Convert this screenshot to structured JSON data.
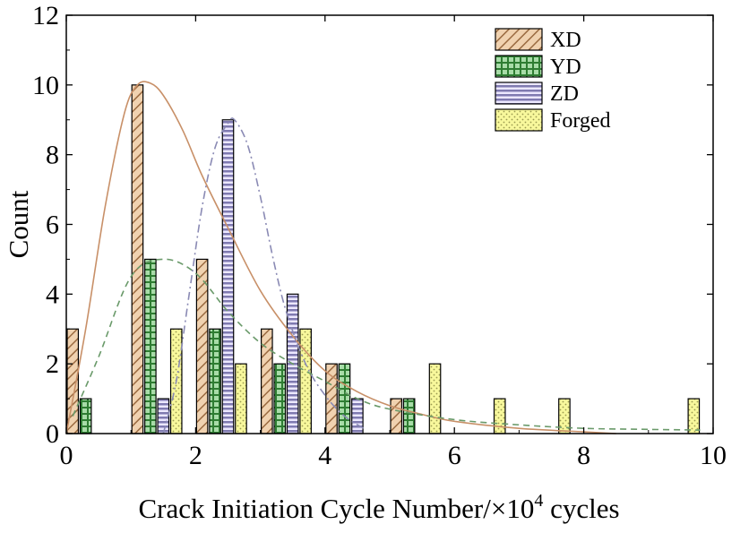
{
  "chart_data": {
    "type": "bar",
    "title": "",
    "xlabel": "Crack Initiation Cycle Number/×10",
    "xlabel_superscript": "4",
    "xlabel_suffix": " cycles",
    "ylabel": "Count",
    "xlim": [
      0,
      10
    ],
    "ylim": [
      0,
      12
    ],
    "x_ticks": [
      "0",
      "2",
      "4",
      "6",
      "8",
      "10"
    ],
    "y_ticks": [
      "0",
      "2",
      "4",
      "6",
      "8",
      "10",
      "12"
    ],
    "grid": false,
    "legend_position": "top-right",
    "bin_width": 1,
    "bin_starts": [
      0,
      1,
      2,
      3,
      4,
      5,
      6,
      7,
      8,
      9
    ],
    "series": [
      {
        "name": "XD",
        "color": "#e3bc95",
        "pattern": "diagonal-hatch",
        "values": [
          3,
          10,
          5,
          3,
          2,
          1,
          0,
          0,
          0,
          0
        ],
        "fit_curve": {
          "style": "solid",
          "color": "#c89068",
          "x": [
            0.0,
            0.3,
            0.6,
            0.9,
            1.1,
            1.3,
            1.5,
            1.8,
            2.1,
            2.5,
            3.0,
            3.5,
            4.0,
            4.5,
            5.0,
            5.5,
            6.0,
            7.0,
            8.0,
            8.5
          ],
          "y": [
            0.0,
            3.0,
            6.5,
            9.2,
            10.0,
            10.05,
            9.7,
            8.7,
            7.4,
            5.9,
            4.1,
            2.8,
            1.8,
            1.2,
            0.8,
            0.55,
            0.35,
            0.15,
            0.05,
            0.0
          ]
        }
      },
      {
        "name": "YD",
        "color": "#66bb66",
        "pattern": "crosshatch",
        "values": [
          1,
          5,
          3,
          2,
          2,
          1,
          0,
          0,
          0,
          0
        ],
        "fit_curve": {
          "style": "dashed",
          "color": "#6a9a6a",
          "x": [
            0.1,
            0.5,
            1.0,
            1.5,
            2.0,
            2.5,
            3.0,
            3.5,
            4.0,
            4.5,
            5.0,
            6.0,
            7.0,
            8.0,
            9.0,
            9.8
          ],
          "y": [
            0.5,
            2.2,
            4.5,
            5.0,
            4.6,
            3.5,
            2.6,
            2.0,
            1.5,
            1.0,
            0.7,
            0.4,
            0.25,
            0.15,
            0.12,
            0.1
          ]
        }
      },
      {
        "name": "ZD",
        "color": "#8c88b6",
        "pattern": "horizontal-lines",
        "values": [
          0,
          1,
          9,
          4,
          1,
          0,
          0,
          0,
          0,
          0
        ],
        "fit_curve": {
          "style": "dash-dot",
          "color": "#8a8ab4",
          "x": [
            1.5,
            1.7,
            1.9,
            2.1,
            2.3,
            2.5,
            2.6,
            2.8,
            3.0,
            3.2,
            3.4,
            3.7,
            4.0,
            4.3,
            4.6
          ],
          "y": [
            0.0,
            1.5,
            4.0,
            6.5,
            8.2,
            8.9,
            9.0,
            8.3,
            6.8,
            5.0,
            3.5,
            2.0,
            1.1,
            0.5,
            0.15
          ]
        }
      },
      {
        "name": "Forged",
        "color": "#f5f59a",
        "pattern": "dots",
        "values": [
          0,
          3,
          2,
          3,
          0,
          2,
          1,
          1,
          0,
          1
        ],
        "fit_curve": null
      }
    ]
  }
}
